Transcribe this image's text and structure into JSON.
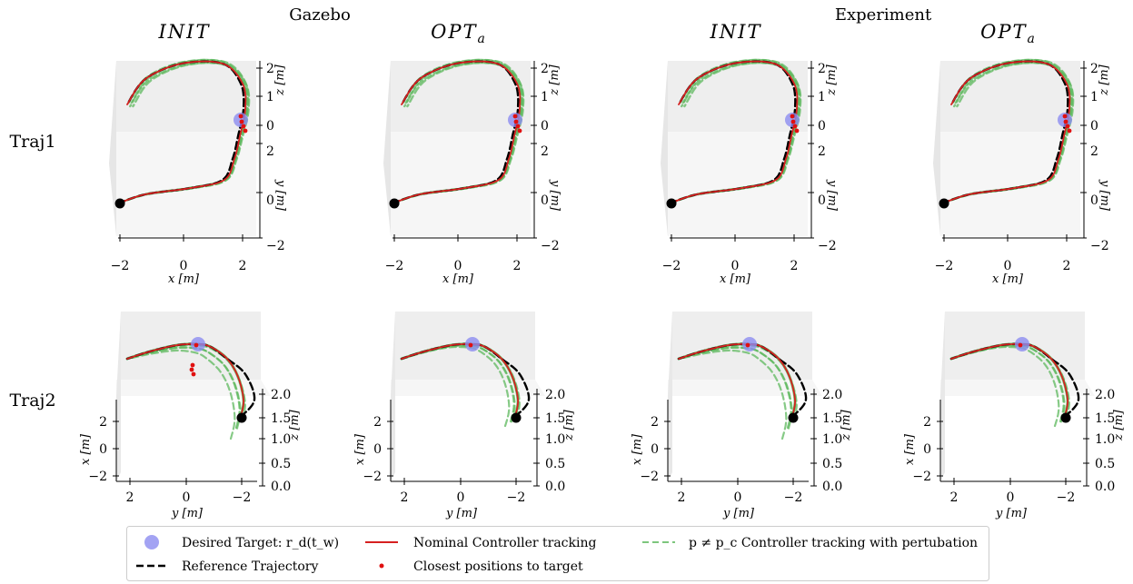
{
  "group_titles": [
    "Gazebo",
    "Experiment"
  ],
  "column_titles": [
    "INIT",
    "OPT",
    "INIT",
    "OPT"
  ],
  "column_title_subscripts": [
    "",
    "a",
    "",
    "a"
  ],
  "row_labels": [
    "Traj1",
    "Traj2"
  ],
  "legend": {
    "target": "Desired Target: r_d(t_w)",
    "nominal": "Nominal Controller tracking",
    "perturbed": "p ≠ p_c Controller tracking with pertubation",
    "reference": "Reference Trajectory",
    "closest": "Closest positions to target"
  },
  "colors": {
    "reference": "#000000",
    "nominal": "#d62020",
    "perturbed": "#5db85d",
    "target": "#8c8cf0",
    "closest": "#e01010",
    "pane": "#f2f2f2"
  },
  "chart_data": [
    {
      "type": "line",
      "panel": "Traj1-INIT",
      "projection": "3d",
      "xlabel": "x [m]",
      "ylabel": "y [m]",
      "zlabel": "z [m]",
      "xticks": [
        "-2",
        "0",
        "2"
      ],
      "yticks": [
        "2",
        "0",
        "-2"
      ],
      "zticks": [
        "2",
        "1",
        "0"
      ],
      "xlim": [
        -2.5,
        2.5
      ],
      "ylim": [
        -2,
        2
      ],
      "zlim": [
        0,
        2
      ],
      "series": [
        {
          "role": "reference",
          "x": [
            -2.2,
            -1.2,
            0.2,
            1.3,
            1.8,
            2.0,
            1.8,
            1.0,
            -0.5,
            -1.5,
            -2.0
          ],
          "y": [
            -0.4,
            -0.2,
            0.0,
            0.5,
            1.5,
            2.0,
            2.0,
            2.0,
            2.0,
            2.0,
            2.0
          ],
          "z": [
            0.0,
            0.0,
            0.0,
            0.0,
            0.0,
            0.0,
            0.8,
            2.0,
            1.7,
            1.2,
            0.7
          ]
        },
        {
          "role": "nominal",
          "x": [
            -2.2,
            -1.2,
            0.2,
            1.2,
            1.6,
            1.9,
            1.8,
            1.0,
            -0.5,
            -1.5,
            -2.0
          ],
          "y": [
            -0.4,
            -0.1,
            0.1,
            0.6,
            1.5,
            2.0,
            2.0,
            2.0,
            2.0,
            2.0,
            2.0
          ],
          "z": [
            0.0,
            0.0,
            0.0,
            0.0,
            0.0,
            0.0,
            0.8,
            2.0,
            1.7,
            1.2,
            0.7
          ]
        }
      ],
      "target": {
        "x": 2.0,
        "y": 2.0,
        "z": 0.0
      },
      "start": {
        "x": -2.2,
        "y": -0.4,
        "z": 0.0
      }
    },
    {
      "type": "line",
      "panel": "Traj1-OPT_a",
      "projection": "3d",
      "xlabel": "x [m]",
      "ylabel": "y [m]",
      "zlabel": "z [m]",
      "xticks": [
        "-2",
        "0",
        "2"
      ],
      "yticks": [
        "2",
        "0",
        "-2"
      ],
      "zticks": [
        "2",
        "1",
        "0"
      ],
      "xlim": [
        -2.5,
        2.5
      ],
      "ylim": [
        -2,
        2
      ],
      "zlim": [
        0,
        2
      ],
      "series": [
        {
          "role": "reference",
          "x": [
            -2.2,
            -1.0,
            0.5,
            1.5,
            1.9,
            2.0,
            1.8,
            1.0,
            -0.5,
            -1.5,
            -2.0
          ],
          "y": [
            -0.4,
            -0.2,
            0.2,
            0.8,
            1.6,
            2.0,
            2.0,
            2.0,
            2.0,
            2.0,
            2.0
          ],
          "z": [
            0.0,
            0.0,
            0.0,
            0.0,
            0.0,
            0.0,
            0.8,
            2.0,
            1.7,
            1.2,
            0.7
          ]
        }
      ],
      "target": {
        "x": 2.0,
        "y": 2.0,
        "z": 0.0
      },
      "start": {
        "x": -2.2,
        "y": -0.4,
        "z": 0.0
      }
    },
    {
      "type": "line",
      "panel": "Traj1-INIT-experiment",
      "projection": "3d",
      "xlabel": "x [m]",
      "ylabel": "y [m]",
      "zlabel": "z [m]",
      "xticks": [
        "-2",
        "0",
        "2"
      ],
      "yticks": [
        "2",
        "0",
        "-2"
      ],
      "zticks": [
        "2",
        "1",
        "0"
      ],
      "xlim": [
        -2.5,
        2.5
      ],
      "ylim": [
        -2,
        2
      ],
      "zlim": [
        0,
        2
      ]
    },
    {
      "type": "line",
      "panel": "Traj1-OPT_a-experiment",
      "projection": "3d",
      "xlabel": "x [m]",
      "ylabel": "y [m]",
      "zlabel": "z [m]",
      "xticks": [
        "-2",
        "0",
        "2"
      ],
      "yticks": [
        "2",
        "0",
        "-2"
      ],
      "zticks": [
        "2",
        "1",
        "0"
      ],
      "xlim": [
        -2.5,
        2.5
      ],
      "ylim": [
        -2,
        2
      ],
      "zlim": [
        0,
        2
      ]
    },
    {
      "type": "line",
      "panel": "Traj2-INIT",
      "projection": "3d",
      "xlabel": "y [m]",
      "ylabel": "x [m]",
      "zlabel": "z [m]",
      "xticks": [
        "2",
        "0",
        "-2"
      ],
      "yticks": [
        "2",
        "0",
        "-2"
      ],
      "zticks": [
        "2.0",
        "1.5",
        "1.0",
        "0.5",
        "0.0"
      ],
      "xlim": [
        -2.5,
        2.5
      ],
      "ylim": [
        -2,
        2
      ],
      "zlim": [
        0,
        2
      ]
    },
    {
      "type": "line",
      "panel": "Traj2-OPT_a",
      "projection": "3d",
      "xlabel": "y [m]",
      "ylabel": "x [m]",
      "zlabel": "z [m]",
      "xticks": [
        "2",
        "0",
        "-2"
      ],
      "yticks": [
        "2",
        "0",
        "-2"
      ],
      "zticks": [
        "2.0",
        "1.5",
        "1.0",
        "0.5",
        "0.0"
      ],
      "xlim": [
        -2.5,
        2.5
      ],
      "ylim": [
        -2,
        2
      ],
      "zlim": [
        0,
        2
      ]
    },
    {
      "type": "line",
      "panel": "Traj2-INIT-experiment",
      "projection": "3d",
      "xlabel": "y [m]",
      "ylabel": "x [m]",
      "zlabel": "z [m]",
      "xticks": [
        "2",
        "0",
        "-2"
      ],
      "yticks": [
        "2",
        "0",
        "-2"
      ],
      "zticks": [
        "2.0",
        "1.5",
        "1.0",
        "0.5",
        "0.0"
      ],
      "xlim": [
        -2.5,
        2.5
      ],
      "ylim": [
        -2,
        2
      ],
      "zlim": [
        0,
        2
      ]
    },
    {
      "type": "line",
      "panel": "Traj2-OPT_a-experiment",
      "projection": "3d",
      "xlabel": "y [m]",
      "ylabel": "x [m]",
      "zlabel": "z [m]",
      "xticks": [
        "2",
        "0",
        "-2"
      ],
      "yticks": [
        "2",
        "0",
        "-2"
      ],
      "zticks": [
        "2.0",
        "1.5",
        "1.0",
        "0.5",
        "0.0"
      ],
      "xlim": [
        -2.5,
        2.5
      ],
      "ylim": [
        -2,
        2
      ],
      "zlim": [
        0,
        2
      ]
    }
  ]
}
